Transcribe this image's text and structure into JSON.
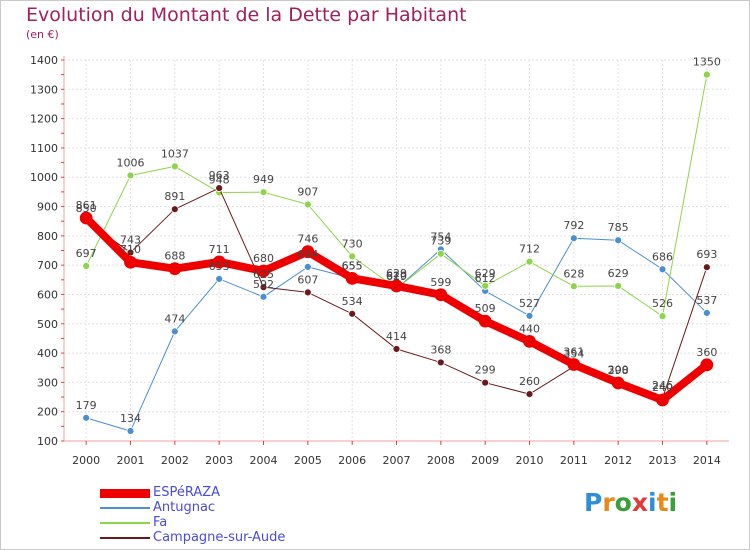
{
  "title": "Evolution du Montant de la Dette par Habitant",
  "subtitle": "(en €)",
  "logo": {
    "text": "Proxiti",
    "colors": [
      "#2e8fd8",
      "#e88a1a",
      "#3a9e3a",
      "#e03a3a",
      "#2e8fd8",
      "#e88a1a",
      "#3a9e3a"
    ]
  },
  "chart_data": {
    "type": "line",
    "x": [
      "2000",
      "2001",
      "2002",
      "2003",
      "2004",
      "2005",
      "2006",
      "2007",
      "2008",
      "2009",
      "2010",
      "2011",
      "2012",
      "2013",
      "2014"
    ],
    "ylim": [
      100,
      1400
    ],
    "yticks": [
      100,
      200,
      300,
      400,
      500,
      600,
      700,
      800,
      900,
      1000,
      1100,
      1200,
      1300,
      1400
    ],
    "grid": true,
    "series": [
      {
        "name": "ESPéRAZA",
        "color": "#ee0000",
        "width": 8,
        "values": [
          861,
          710,
          688,
          711,
          680,
          746,
          655,
          629,
          599,
          509,
          440,
          361,
          298,
          240,
          360
        ],
        "labels": [
          "861",
          "710",
          "688",
          "711",
          "680",
          "746",
          "655",
          "629",
          "599",
          "509",
          "440",
          "361",
          "298",
          "240",
          "360"
        ]
      },
      {
        "name": "Antugnac",
        "color": "#4a90d0",
        "width": 1,
        "values": [
          179,
          134,
          474,
          653,
          592,
          694,
          655,
          619,
          754,
          612,
          527,
          792,
          785,
          686,
          537
        ],
        "labels": [
          "179",
          "134",
          "474",
          "653",
          "592",
          "694",
          "655",
          "619",
          "754",
          "612",
          "527",
          "792",
          "785",
          "686",
          "537"
        ]
      },
      {
        "name": "Fa",
        "color": "#8ed44a",
        "width": 1,
        "values": [
          697,
          1006,
          1037,
          948,
          949,
          907,
          730,
          620,
          739,
          629,
          712,
          628,
          629,
          526,
          1350
        ],
        "labels": [
          "697",
          "1006",
          "1037",
          "948",
          "949",
          "907",
          "730",
          "620",
          "739",
          "629",
          "712",
          "628",
          "629",
          "526",
          "1350"
        ]
      },
      {
        "name": "Campagne-sur-Aude",
        "color": "#6a1a1a",
        "width": 1,
        "values": [
          850,
          743,
          891,
          963,
          625,
          607,
          534,
          414,
          368,
          299,
          260,
          354,
          300,
          246,
          693
        ],
        "labels": [
          "850",
          "743",
          "891",
          "963",
          "625",
          "607",
          "534",
          "414",
          "368",
          "299",
          "260",
          "354",
          "300",
          "246",
          "693"
        ]
      }
    ]
  }
}
